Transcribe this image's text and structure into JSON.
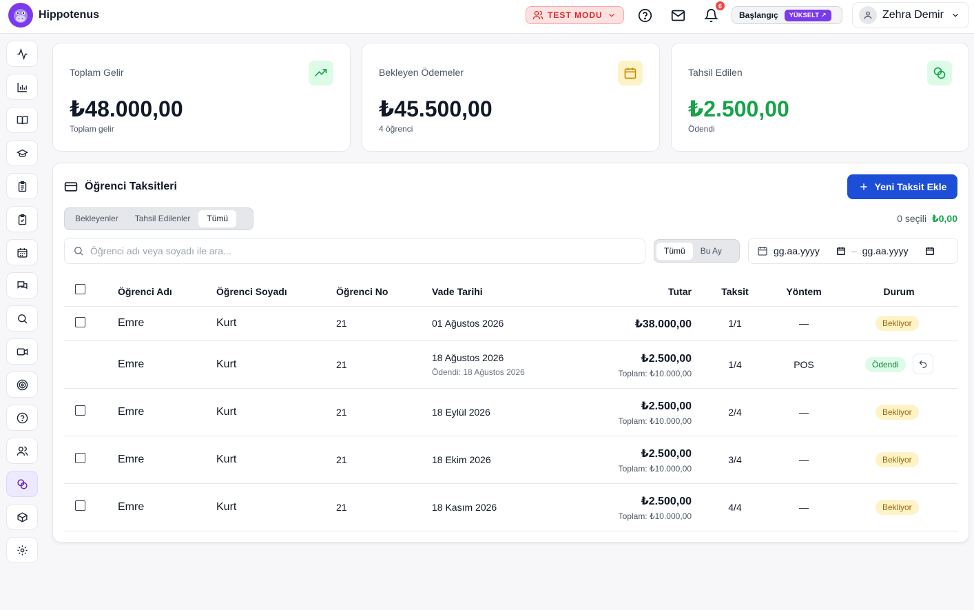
{
  "header": {
    "brand": "Hippotenus",
    "test_mode": "TEST MODU",
    "notification_count": "6",
    "plan": "Başlangıç",
    "upgrade": "YÜKSELT ↗",
    "user_name": "Zehra Demir"
  },
  "stats": [
    {
      "title": "Toplam Gelir",
      "value": "₺48.000,00",
      "sub": "Toplam gelir",
      "icon": "trending-up-icon",
      "icon_color": "#16a34a",
      "icon_bg": "#dcfce7",
      "value_color": "#111827"
    },
    {
      "title": "Bekleyen Ödemeler",
      "value": "₺45.500,00",
      "sub": "4 öğrenci",
      "icon": "calendar-icon",
      "icon_color": "#ca8a04",
      "icon_bg": "#fef3c7",
      "value_color": "#111827"
    },
    {
      "title": "Tahsil Edilen",
      "value": "₺2.500,00",
      "sub": "Ödendi",
      "icon": "coins-icon",
      "icon_color": "#16a34a",
      "icon_bg": "#dcfce7",
      "value_color": "#16a34a"
    }
  ],
  "panel": {
    "title": "Öğrenci Taksitleri",
    "new_button": "Yeni Taksit Ekle",
    "tabs": [
      "Bekleyenler",
      "Tahsil Edilenler",
      "Tümü"
    ],
    "active_tab": "Tümü",
    "selected_count": "0 seçili",
    "selected_amount": "₺0,00",
    "search_placeholder": "Öğrenci adı veya soyadı ile ara...",
    "period_tabs": [
      "Tümü",
      "Bu Ay"
    ],
    "active_period": "Tümü",
    "date_from": "gg.aa.yyyy",
    "date_separator": "–",
    "date_to": "gg.aa.yyyy"
  },
  "table": {
    "columns": [
      "Öğrenci Adı",
      "Öğrenci Soyadı",
      "Öğrenci No",
      "Vade Tarihi",
      "Tutar",
      "Taksit",
      "Yöntem",
      "Durum"
    ],
    "rows": [
      {
        "first": "Emre",
        "last": "Kurt",
        "no": "21",
        "due": "01 Ağustos 2026",
        "paid_note": "",
        "amount": "₺38.000,00",
        "total": "",
        "installment": "1/1",
        "method": "—",
        "status": "Bekliyor",
        "checkbox": true,
        "undo": false
      },
      {
        "first": "Emre",
        "last": "Kurt",
        "no": "21",
        "due": "18 Ağustos 2026",
        "paid_note": "Ödendi: 18 Ağustos 2026",
        "amount": "₺2.500,00",
        "total": "Toplam: ₺10.000,00",
        "installment": "1/4",
        "method": "POS",
        "status": "Ödendi",
        "checkbox": false,
        "undo": true
      },
      {
        "first": "Emre",
        "last": "Kurt",
        "no": "21",
        "due": "18 Eylül 2026",
        "paid_note": "",
        "amount": "₺2.500,00",
        "total": "Toplam: ₺10.000,00",
        "installment": "2/4",
        "method": "—",
        "status": "Bekliyor",
        "checkbox": true,
        "undo": false
      },
      {
        "first": "Emre",
        "last": "Kurt",
        "no": "21",
        "due": "18 Ekim 2026",
        "paid_note": "",
        "amount": "₺2.500,00",
        "total": "Toplam: ₺10.000,00",
        "installment": "3/4",
        "method": "—",
        "status": "Bekliyor",
        "checkbox": true,
        "undo": false
      },
      {
        "first": "Emre",
        "last": "Kurt",
        "no": "21",
        "due": "18 Kasım 2026",
        "paid_note": "",
        "amount": "₺2.500,00",
        "total": "Toplam: ₺10.000,00",
        "installment": "4/4",
        "method": "—",
        "status": "Bekliyor",
        "checkbox": true,
        "undo": false
      }
    ]
  },
  "sidebar": {
    "items": [
      "activity-icon",
      "bar-chart-icon",
      "book-open-icon",
      "graduation-cap-icon",
      "clipboard-list-icon",
      "clipboard-check-icon",
      "calendar-grid-icon",
      "messages-icon",
      "search-icon",
      "video-icon",
      "target-icon",
      "help-circle-icon",
      "users-icon",
      "coins-icon",
      "box-icon",
      "settings-icon"
    ],
    "active": "coins-icon"
  },
  "colors": {
    "primary": "#1d4ed8",
    "accent": "#7c3aed",
    "success": "#16a34a",
    "warning": "#ca8a04",
    "danger": "#dc2626"
  }
}
